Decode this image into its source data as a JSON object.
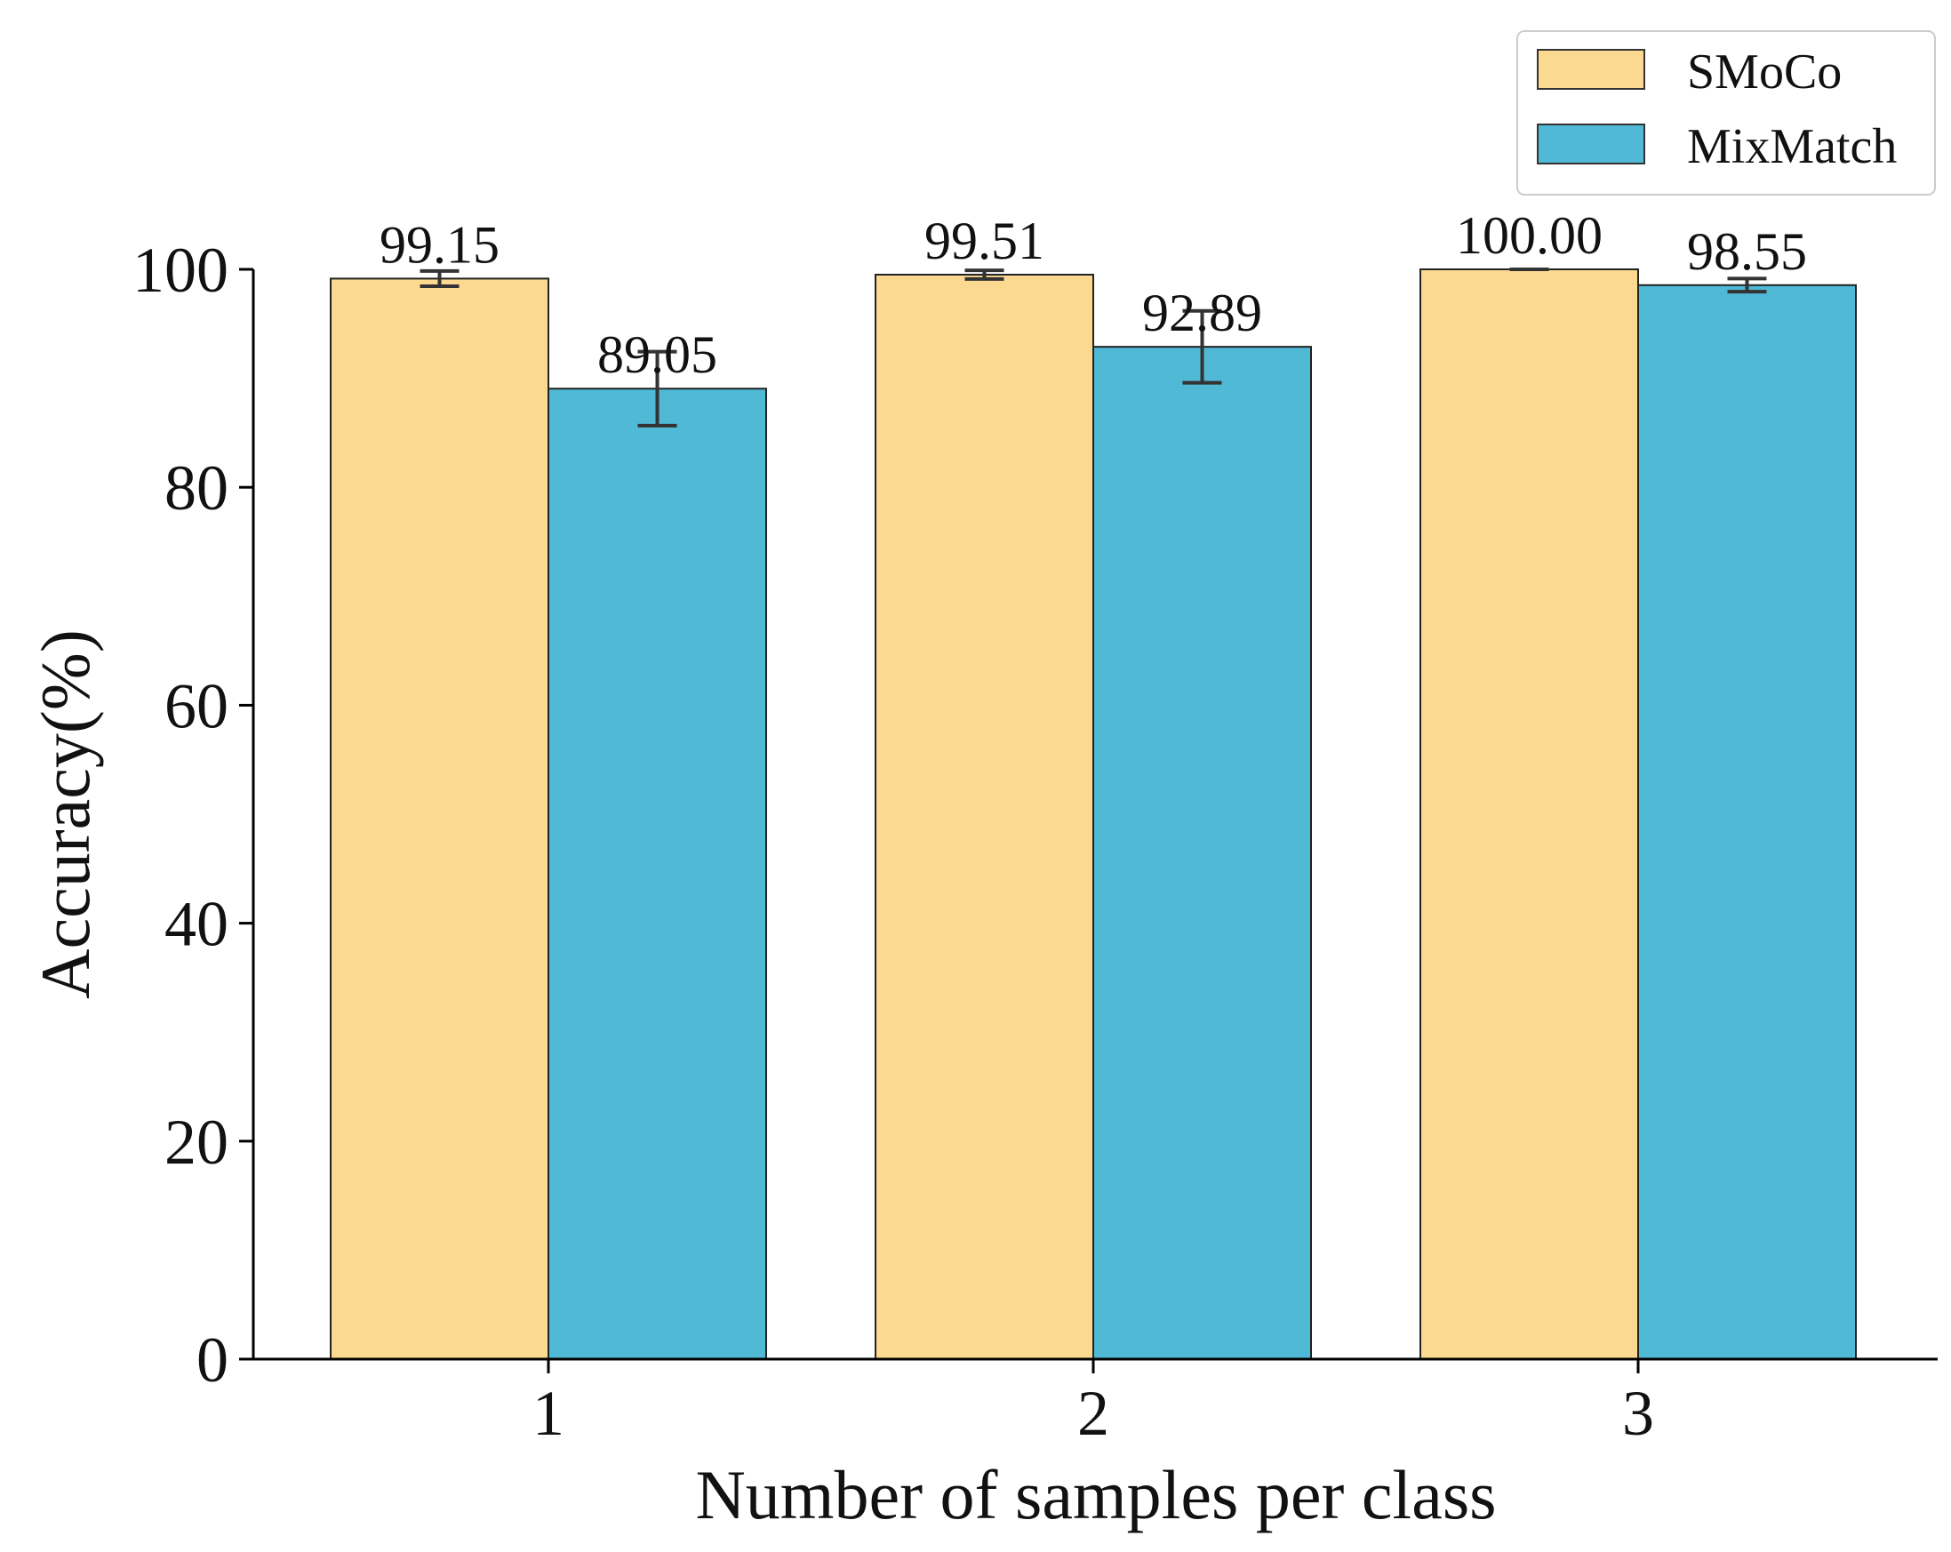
{
  "chart_data": {
    "type": "bar",
    "title": "",
    "xlabel": "Number of samples per class",
    "ylabel": "Accuracy(%)",
    "categories": [
      "1",
      "2",
      "3"
    ],
    "ylim": [
      0,
      100
    ],
    "yticks": [
      0,
      20,
      40,
      60,
      80,
      100
    ],
    "grid": false,
    "legend_position": "top-right",
    "series": [
      {
        "name": "SMoCo",
        "color": "#FCD990",
        "values": [
          99.15,
          99.51,
          100.0
        ],
        "labels": [
          "99.15",
          "99.51",
          "100.00"
        ],
        "errors": [
          0.7,
          0.4,
          0.0
        ]
      },
      {
        "name": "MixMatch",
        "color": "#4FB9D6",
        "values": [
          89.05,
          92.89,
          98.55
        ],
        "labels": [
          "89.05",
          "92.89",
          "98.55"
        ],
        "errors": [
          3.4,
          3.3,
          0.6
        ]
      }
    ]
  }
}
